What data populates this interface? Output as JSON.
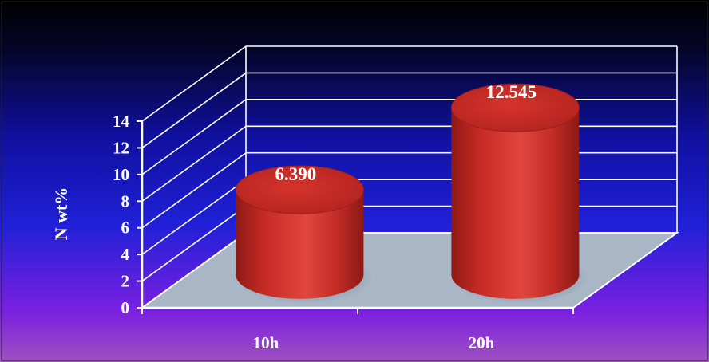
{
  "chart_data": {
    "type": "bar",
    "style": "3d-cylinder",
    "categories": [
      "10h",
      "20h"
    ],
    "values": [
      6.39,
      12.545
    ],
    "data_labels": [
      "6.390",
      "12.545"
    ],
    "title": "",
    "xlabel": "",
    "ylabel": "N wt%",
    "ylim": [
      0,
      14
    ],
    "yticks": [
      "0",
      "2",
      "4",
      "6",
      "8",
      "10",
      "12",
      "14"
    ],
    "grid": true,
    "legend": "none",
    "colors": {
      "bar": "#d8302a",
      "bar_top": "#c42a26",
      "floor": "#a9b6c6",
      "gridline": "#ffffff",
      "text": "#ffffff",
      "background_top": "#000000",
      "background_mid": "#1a1ac8",
      "background_bottom": "#9a40c8"
    }
  }
}
